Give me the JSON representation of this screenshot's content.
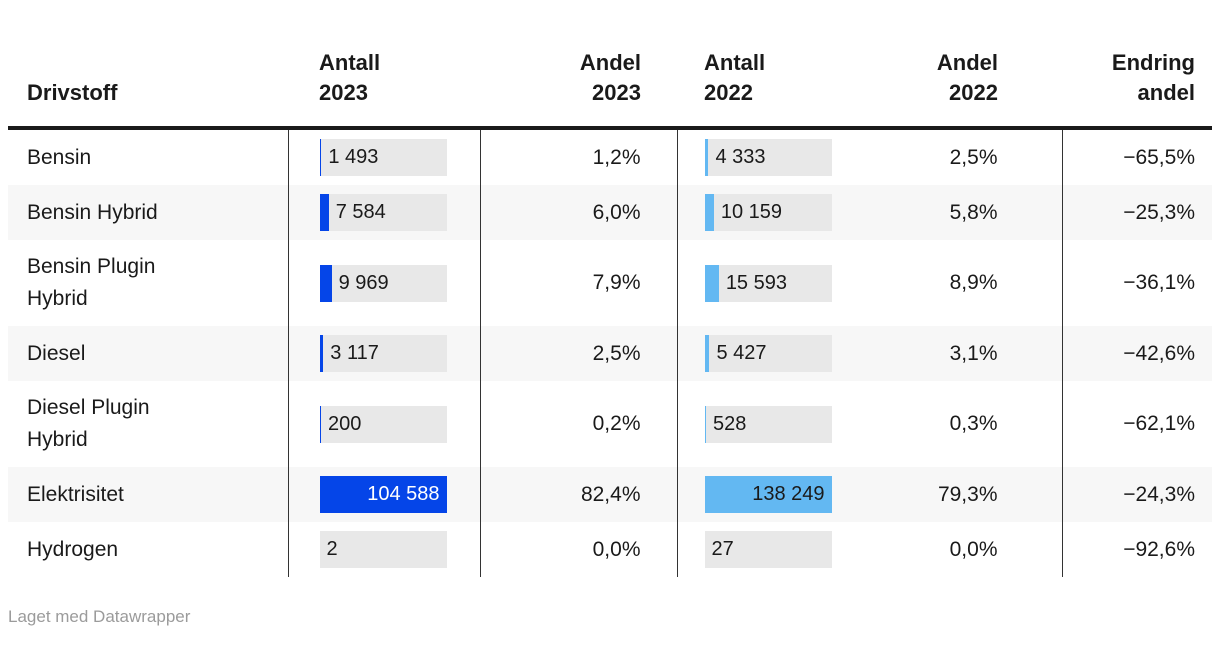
{
  "colors": {
    "text": "#1a1a1a",
    "header_rule": "#1a1a1a",
    "column_divider": "#333333",
    "row_stripe": "#f7f7f7",
    "bar_track": "#e8e8e8",
    "bar_2023": "#0545e8",
    "bar_2022": "#63b8f2",
    "bar_2023_label": "#ffffff",
    "bar_2022_label": "#1a1a1a",
    "footer_text": "#9b9b9b"
  },
  "table": {
    "columns": [
      {
        "id": "drivstoff",
        "label": "Drivstoff"
      },
      {
        "id": "antall_2023",
        "line1": "Antall",
        "line2": "2023"
      },
      {
        "id": "andel_2023",
        "line1": "Andel",
        "line2": "2023"
      },
      {
        "id": "antall_2022",
        "line1": "Antall",
        "line2": "2022"
      },
      {
        "id": "andel_2022",
        "line1": "Andel",
        "line2": "2022"
      },
      {
        "id": "endring_andel",
        "line1": "Endring",
        "line2": "andel"
      }
    ],
    "bar_max": {
      "antall_2023": 104588,
      "antall_2022": 138249
    },
    "rows": [
      {
        "fuel": "Bensin",
        "antall_2023": 1493,
        "antall_2023_label": "1 493",
        "andel_2023": "1,2%",
        "antall_2022": 4333,
        "antall_2022_label": "4 333",
        "andel_2022": "2,5%",
        "endring_andel": "−65,5%"
      },
      {
        "fuel": "Bensin Hybrid",
        "antall_2023": 7584,
        "antall_2023_label": "7 584",
        "andel_2023": "6,0%",
        "antall_2022": 10159,
        "antall_2022_label": "10 159",
        "andel_2022": "5,8%",
        "endring_andel": "−25,3%"
      },
      {
        "fuel": "Bensin Plugin Hybrid",
        "antall_2023": 9969,
        "antall_2023_label": "9 969",
        "andel_2023": "7,9%",
        "antall_2022": 15593,
        "antall_2022_label": "15 593",
        "andel_2022": "8,9%",
        "endring_andel": "−36,1%"
      },
      {
        "fuel": "Diesel",
        "antall_2023": 3117,
        "antall_2023_label": "3 117",
        "andel_2023": "2,5%",
        "antall_2022": 5427,
        "antall_2022_label": "5 427",
        "andel_2022": "3,1%",
        "endring_andel": "−42,6%"
      },
      {
        "fuel": "Diesel Plugin Hybrid",
        "antall_2023": 200,
        "antall_2023_label": "200",
        "andel_2023": "0,2%",
        "antall_2022": 528,
        "antall_2022_label": "528",
        "andel_2022": "0,3%",
        "endring_andel": "−62,1%"
      },
      {
        "fuel": "Elektrisitet",
        "antall_2023": 104588,
        "antall_2023_label": "104 588",
        "andel_2023": "82,4%",
        "antall_2022": 138249,
        "antall_2022_label": "138 249",
        "andel_2022": "79,3%",
        "endring_andel": "−24,3%"
      },
      {
        "fuel": "Hydrogen",
        "antall_2023": 2,
        "antall_2023_label": "2",
        "andel_2023": "0,0%",
        "antall_2022": 27,
        "antall_2022_label": "27",
        "andel_2022": "0,0%",
        "endring_andel": "−92,6%"
      }
    ]
  },
  "footer": {
    "attribution": "Laget med Datawrapper"
  },
  "chart_data": {
    "type": "table",
    "title": "",
    "columns": [
      "Drivstoff",
      "Antall 2023",
      "Andel 2023",
      "Antall 2022",
      "Andel 2022",
      "Endring andel"
    ],
    "rows": [
      [
        "Bensin",
        1493,
        "1,2%",
        4333,
        "2,5%",
        "−65,5%"
      ],
      [
        "Bensin Hybrid",
        7584,
        "6,0%",
        10159,
        "5,8%",
        "−25,3%"
      ],
      [
        "Bensin Plugin Hybrid",
        9969,
        "7,9%",
        15593,
        "8,9%",
        "−36,1%"
      ],
      [
        "Diesel",
        3117,
        "2,5%",
        5427,
        "3,1%",
        "−42,6%"
      ],
      [
        "Diesel Plugin Hybrid",
        200,
        "0,2%",
        528,
        "0,3%",
        "−62,1%"
      ],
      [
        "Elektrisitet",
        104588,
        "82,4%",
        138249,
        "79,3%",
        "−24,3%"
      ],
      [
        "Hydrogen",
        2,
        "0,0%",
        27,
        "0,0%",
        "−92,6%"
      ]
    ],
    "embedded_bars": {
      "Antall 2023": {
        "scale_max": 104588,
        "color": "#0545e8"
      },
      "Antall 2022": {
        "scale_max": 138249,
        "color": "#63b8f2"
      }
    },
    "legend_position": "none",
    "grid": false
  }
}
